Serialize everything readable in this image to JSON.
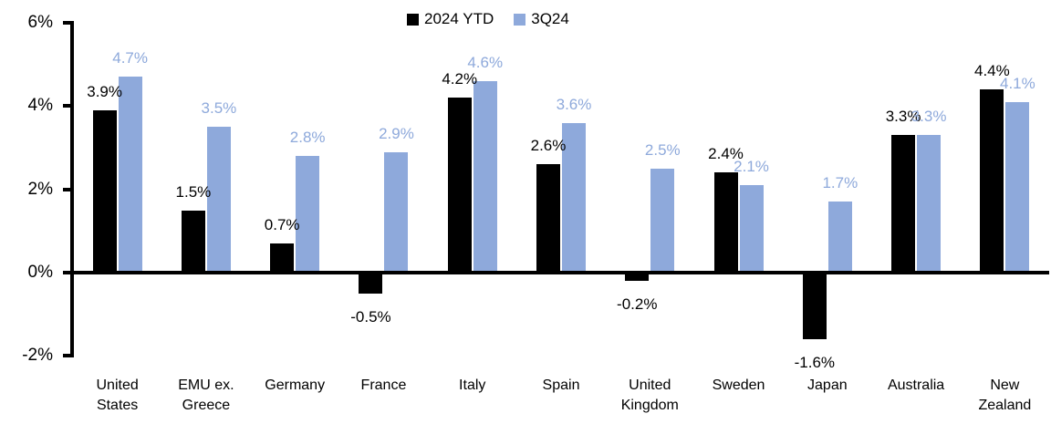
{
  "legend": {
    "items": [
      {
        "label": "2024 YTD",
        "color": "#000000"
      },
      {
        "label": "3Q24",
        "color": "#8EA9DB"
      }
    ]
  },
  "chart_data": {
    "type": "bar",
    "title": "",
    "xlabel": "",
    "ylabel": "",
    "categories": [
      "United States",
      "EMU ex. Greece",
      "Germany",
      "France",
      "Italy",
      "Spain",
      "United Kingdom",
      "Sweden",
      "Japan",
      "Australia",
      "New Zealand"
    ],
    "category_lines": [
      [
        "United",
        "States"
      ],
      [
        "EMU ex.",
        "Greece"
      ],
      [
        "Germany"
      ],
      [
        "France"
      ],
      [
        "Italy"
      ],
      [
        "Spain"
      ],
      [
        "United",
        "Kingdom"
      ],
      [
        "Sweden"
      ],
      [
        "Japan"
      ],
      [
        "Australia"
      ],
      [
        "New",
        "Zealand"
      ]
    ],
    "series": [
      {
        "name": "2024 YTD",
        "color": "#000000",
        "values": [
          3.9,
          1.5,
          0.7,
          -0.5,
          4.2,
          2.6,
          -0.2,
          2.4,
          -1.6,
          3.3,
          4.4
        ],
        "labels": [
          "3.9%",
          "1.5%",
          "0.7%",
          "-0.5%",
          "4.2%",
          "2.6%",
          "-0.2%",
          "2.4%",
          "-1.6%",
          "3.3%",
          "4.4%"
        ]
      },
      {
        "name": "3Q24",
        "color": "#8EA9DB",
        "values": [
          4.7,
          3.5,
          2.8,
          2.9,
          4.6,
          3.6,
          2.5,
          2.1,
          1.7,
          3.3,
          4.1
        ],
        "labels": [
          "4.7%",
          "3.5%",
          "2.8%",
          "2.9%",
          "4.6%",
          "3.6%",
          "2.5%",
          "2.1%",
          "1.7%",
          "3.3%",
          "4.1%"
        ]
      }
    ],
    "ylim": [
      -2,
      6
    ],
    "y_ticks": [
      {
        "value": 6,
        "label": "6%"
      },
      {
        "value": 4,
        "label": "4%"
      },
      {
        "value": 2,
        "label": "2%"
      },
      {
        "value": 0,
        "label": "0%"
      },
      {
        "value": -2,
        "label": "-2%"
      }
    ],
    "grid": false,
    "legend_position": "top-center",
    "data_label_format": "x.x%"
  }
}
